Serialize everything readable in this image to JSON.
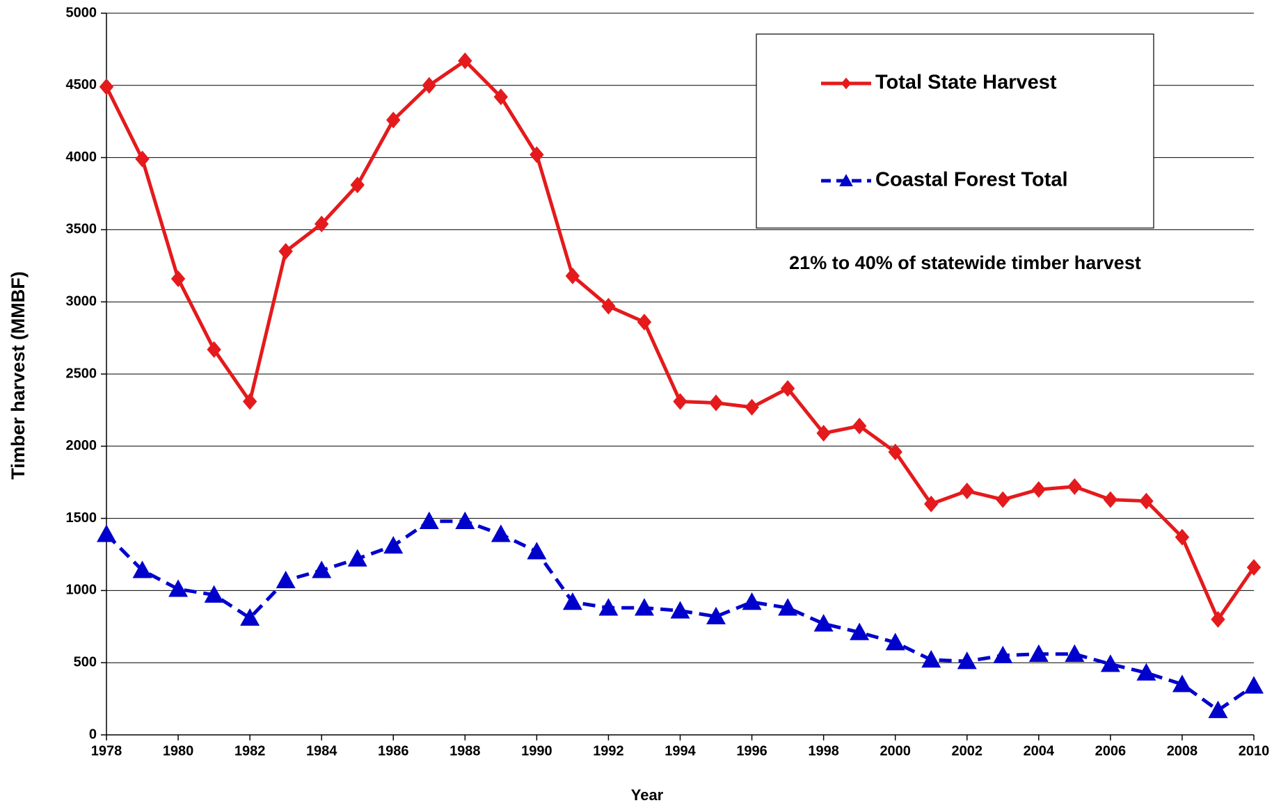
{
  "chart_data": {
    "type": "line",
    "x_label": "Year",
    "y_label": "Timber harvest (MMBF)",
    "annotation": "21% to 40% of statewide timber harvest",
    "x": [
      1978,
      1979,
      1980,
      1981,
      1982,
      1983,
      1984,
      1985,
      1986,
      1987,
      1988,
      1989,
      1990,
      1991,
      1992,
      1993,
      1994,
      1995,
      1996,
      1997,
      1998,
      1999,
      2000,
      2001,
      2002,
      2003,
      2004,
      2005,
      2006,
      2007,
      2008,
      2009,
      2010
    ],
    "series": [
      {
        "name": "Total State Harvest",
        "color": "#e41a1c",
        "marker": "diamond",
        "dash": false,
        "values": [
          4490,
          3990,
          3160,
          2670,
          2310,
          3350,
          3540,
          3810,
          4260,
          4500,
          4670,
          4420,
          4020,
          3180,
          2970,
          2860,
          2310,
          2300,
          2270,
          2400,
          2090,
          2140,
          1960,
          1600,
          1690,
          1630,
          1700,
          1720,
          1630,
          1620,
          1370,
          800,
          1160
        ]
      },
      {
        "name": "Coastal Forest Total",
        "color": "#0000cc",
        "marker": "triangle",
        "dash": true,
        "values": [
          1390,
          1140,
          1010,
          970,
          810,
          1070,
          1140,
          1220,
          1310,
          1480,
          1480,
          1390,
          1270,
          920,
          880,
          880,
          860,
          820,
          920,
          880,
          770,
          710,
          640,
          520,
          510,
          550,
          560,
          560,
          490,
          430,
          350,
          170,
          340
        ]
      }
    ],
    "xlim": [
      1978,
      2010
    ],
    "xticks": [
      1978,
      1980,
      1982,
      1984,
      1986,
      1988,
      1990,
      1992,
      1994,
      1996,
      1998,
      2000,
      2002,
      2004,
      2006,
      2008,
      2010
    ],
    "ylim": [
      0,
      5000
    ],
    "yticks": [
      0,
      500,
      1000,
      1500,
      2000,
      2500,
      3000,
      3500,
      4000,
      4500,
      5000
    ],
    "grid": true
  }
}
